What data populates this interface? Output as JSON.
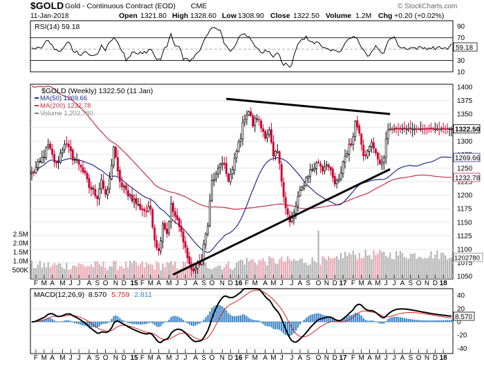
{
  "header": {
    "symbol": "$GOLD",
    "name": "Gold - Continuous Contract (EOD)",
    "exchange": "CME",
    "date": "11-Jan-2018",
    "open_label": "Open",
    "open": "1321.80",
    "high_label": "High",
    "high": "1328.60",
    "low_label": "Low",
    "low": "1308.90",
    "close_label": "Close",
    "close": "1322.50",
    "volume_label": "Volume",
    "volume": "1.2M",
    "chg_label": "Chg",
    "chg": "+0.20 (+0.02%)",
    "watermark": "© StockCharts.com"
  },
  "colors": {
    "up": "#000000",
    "down": "#cc0033",
    "ma50": "#1f2a8c",
    "ma200": "#c0304a",
    "volume_up": "#b4b4b4",
    "volume_down": "#e8a9b4",
    "macd_hist": "#3a86c8"
  },
  "chart_data": [
    {
      "type": "line",
      "panel": "rsi",
      "label": "RSI(14) 59.18",
      "series": [
        {
          "name": "RSI(14)",
          "last": 59.18
        }
      ],
      "ylim": [
        10,
        100
      ],
      "yticks": [
        "90",
        "70",
        "50",
        "30",
        "10"
      ],
      "last_label": "59.18"
    },
    {
      "type": "candlestick",
      "panel": "price",
      "title": "$GOLD (Weekly) 1322.50 (11 Jan)",
      "legend": [
        {
          "label": "MA(50) 1269.66",
          "color": "#1f2a8c"
        },
        {
          "label": "MA(200) 1232.78",
          "color": "#c0304a"
        },
        {
          "label": "Volume 1,202,780",
          "color": "#888888"
        }
      ],
      "ylim": [
        1045,
        1405
      ],
      "yticks": [
        "1400",
        "1375",
        "1350",
        "1325",
        "1300",
        "1275",
        "1250",
        "1225",
        "1200",
        "1175",
        "1150",
        "1125",
        "1100",
        "1075",
        "1050"
      ],
      "volume_yticks": [
        "2.5M",
        "2.0M",
        "1.5M",
        "1.0M",
        "500K"
      ],
      "price_anchors": [
        [
          0,
          1240
        ],
        [
          4,
          1260
        ],
        [
          8,
          1290
        ],
        [
          12,
          1255
        ],
        [
          16,
          1298
        ],
        [
          20,
          1270
        ],
        [
          24,
          1255
        ],
        [
          28,
          1215
        ],
        [
          30,
          1208
        ],
        [
          32,
          1198
        ],
        [
          34,
          1230
        ],
        [
          36,
          1195
        ],
        [
          38,
          1228
        ],
        [
          40,
          1290
        ],
        [
          42,
          1240
        ],
        [
          44,
          1215
        ],
        [
          48,
          1200
        ],
        [
          52,
          1180
        ],
        [
          56,
          1170
        ],
        [
          58,
          1175
        ],
        [
          60,
          1120
        ],
        [
          62,
          1095
        ],
        [
          64,
          1150
        ],
        [
          66,
          1130
        ],
        [
          68,
          1180
        ],
        [
          70,
          1160
        ],
        [
          72,
          1140
        ],
        [
          74,
          1120
        ],
        [
          76,
          1085
        ],
        [
          78,
          1060
        ],
        [
          80,
          1065
        ],
        [
          83,
          1080
        ],
        [
          86,
          1150
        ],
        [
          88,
          1225
        ],
        [
          90,
          1235
        ],
        [
          92,
          1260
        ],
        [
          94,
          1250
        ],
        [
          96,
          1230
        ],
        [
          98,
          1245
        ],
        [
          100,
          1280
        ],
        [
          102,
          1310
        ],
        [
          104,
          1345
        ],
        [
          106,
          1355
        ],
        [
          108,
          1330
        ],
        [
          110,
          1345
        ],
        [
          112,
          1325
        ],
        [
          114,
          1312
        ],
        [
          116,
          1318
        ],
        [
          118,
          1268
        ],
        [
          120,
          1280
        ],
        [
          122,
          1228
        ],
        [
          124,
          1180
        ],
        [
          126,
          1148
        ],
        [
          128,
          1165
        ],
        [
          130,
          1195
        ],
        [
          132,
          1212
        ],
        [
          134,
          1232
        ],
        [
          136,
          1245
        ],
        [
          138,
          1252
        ],
        [
          140,
          1262
        ],
        [
          142,
          1248
        ],
        [
          144,
          1262
        ],
        [
          146,
          1240
        ],
        [
          148,
          1220
        ],
        [
          150,
          1225
        ],
        [
          152,
          1262
        ],
        [
          154,
          1282
        ],
        [
          156,
          1295
        ],
        [
          158,
          1335
        ],
        [
          160,
          1320
        ],
        [
          162,
          1278
        ],
        [
          164,
          1278
        ],
        [
          166,
          1295
        ],
        [
          168,
          1282
        ],
        [
          170,
          1252
        ],
        [
          172,
          1275
        ],
        [
          174,
          1322
        ],
        [
          175,
          1322.5
        ]
      ],
      "last_close": 1322.5,
      "ma50_last": 1269.66,
      "ma200_last": 1232.78,
      "volume_last": 1202780,
      "trendlines": [
        {
          "from": [
            95,
            1378
          ],
          "to": [
            175,
            1350
          ]
        },
        {
          "from": [
            69,
            1053
          ],
          "to": [
            175,
            1248
          ]
        }
      ],
      "price_labels": {
        "close": "1322.50",
        "ma50": "1269.66",
        "ma200": "1232.78",
        "volume": "1202780"
      }
    },
    {
      "type": "line",
      "panel": "macd",
      "label_prefix": "MACD(12,26,9)",
      "macd": "8.570",
      "signal": "5.759",
      "hist": "2.811",
      "ylim": [
        -48,
        50
      ],
      "yticks": [
        "40",
        "20",
        "0",
        "-20",
        "-40"
      ],
      "last_label": "8.570"
    }
  ],
  "xaxis": {
    "ticks": [
      {
        "i": 2,
        "label": "F"
      },
      {
        "i": 6,
        "label": "M"
      },
      {
        "i": 10,
        "label": "A"
      },
      {
        "i": 15,
        "label": "M"
      },
      {
        "i": 19,
        "label": "J"
      },
      {
        "i": 23,
        "label": "J"
      },
      {
        "i": 28,
        "label": "A"
      },
      {
        "i": 32,
        "label": "S"
      },
      {
        "i": 36,
        "label": "O"
      },
      {
        "i": 41,
        "label": "N"
      },
      {
        "i": 45,
        "label": "D"
      },
      {
        "i": 50,
        "label": "15",
        "bold": true
      },
      {
        "i": 54,
        "label": "F"
      },
      {
        "i": 58,
        "label": "M"
      },
      {
        "i": 62,
        "label": "A"
      },
      {
        "i": 67,
        "label": "M"
      },
      {
        "i": 71,
        "label": "J"
      },
      {
        "i": 75,
        "label": "J"
      },
      {
        "i": 80,
        "label": "A"
      },
      {
        "i": 84,
        "label": "S"
      },
      {
        "i": 88,
        "label": "O"
      },
      {
        "i": 93,
        "label": "N"
      },
      {
        "i": 97,
        "label": "D"
      },
      {
        "i": 101,
        "label": "16",
        "bold": true
      },
      {
        "i": 105,
        "label": "F"
      },
      {
        "i": 109,
        "label": "M"
      },
      {
        "i": 114,
        "label": "A"
      },
      {
        "i": 118,
        "label": "M"
      },
      {
        "i": 122,
        "label": "J"
      },
      {
        "i": 127,
        "label": "J"
      },
      {
        "i": 131,
        "label": "A"
      },
      {
        "i": 135,
        "label": "S"
      },
      {
        "i": 140,
        "label": "O"
      },
      {
        "i": 144,
        "label": "N"
      },
      {
        "i": 148,
        "label": "D"
      },
      {
        "i": 152,
        "label": "17",
        "bold": true
      },
      {
        "i": 157,
        "label": "F"
      },
      {
        "i": 161,
        "label": "M"
      },
      {
        "i": 165,
        "label": "A"
      },
      {
        "i": 169,
        "label": "M"
      },
      {
        "i": 173,
        "label": "J"
      },
      {
        "i": 177,
        "label": "J"
      },
      {
        "i": 181,
        "label": "A"
      },
      {
        "i": 185,
        "label": "S"
      },
      {
        "i": 189,
        "label": "O"
      },
      {
        "i": 193,
        "label": "N"
      },
      {
        "i": 197,
        "label": "D"
      },
      {
        "i": 201,
        "label": "18",
        "bold": true
      }
    ]
  }
}
